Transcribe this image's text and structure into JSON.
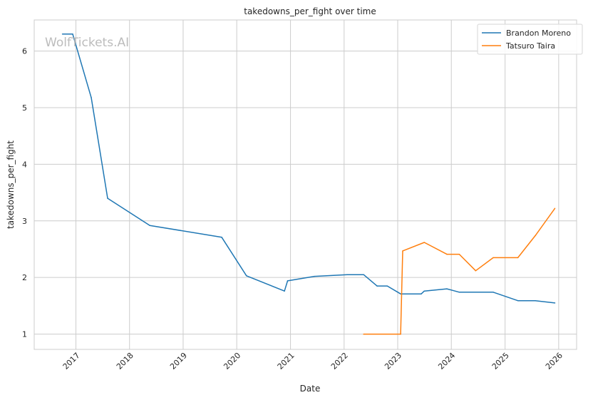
{
  "chart_data": {
    "type": "line",
    "title": "takedowns_per_fight over time",
    "xlabel": "Date",
    "ylabel": "takedowns_per_fight",
    "x_ticks": [
      "2017",
      "2018",
      "2019",
      "2020",
      "2021",
      "2022",
      "2023",
      "2024",
      "2025",
      "2026"
    ],
    "y_ticks": [
      1,
      2,
      3,
      4,
      5,
      6
    ],
    "xlim": [
      "2016-03-23",
      "2026-05-03"
    ],
    "ylim": [
      0.73,
      6.55
    ],
    "grid": true,
    "legend_position": "top-right",
    "watermark": "WolfTickets.AI",
    "series": [
      {
        "name": "Brandon Moreno",
        "color": "#1f77b4",
        "points": [
          {
            "x": "2016-10-01",
            "y": 6.3
          },
          {
            "x": "2016-12-10",
            "y": 6.3
          },
          {
            "x": "2017-04-15",
            "y": 5.18
          },
          {
            "x": "2017-08-05",
            "y": 3.4
          },
          {
            "x": "2018-05-19",
            "y": 2.92
          },
          {
            "x": "2019-09-21",
            "y": 2.71
          },
          {
            "x": "2020-03-07",
            "y": 2.03
          },
          {
            "x": "2020-11-21",
            "y": 1.76
          },
          {
            "x": "2020-12-12",
            "y": 1.94
          },
          {
            "x": "2021-06-12",
            "y": 2.02
          },
          {
            "x": "2022-01-22",
            "y": 2.05
          },
          {
            "x": "2022-05-14",
            "y": 2.05
          },
          {
            "x": "2022-08-13",
            "y": 1.85
          },
          {
            "x": "2022-10-22",
            "y": 1.85
          },
          {
            "x": "2023-01-21",
            "y": 1.71
          },
          {
            "x": "2023-06-10",
            "y": 1.71
          },
          {
            "x": "2023-07-01",
            "y": 1.76
          },
          {
            "x": "2023-12-02",
            "y": 1.8
          },
          {
            "x": "2024-02-24",
            "y": 1.74
          },
          {
            "x": "2024-10-12",
            "y": 1.74
          },
          {
            "x": "2025-03-29",
            "y": 1.59
          },
          {
            "x": "2025-07-26",
            "y": 1.59
          },
          {
            "x": "2025-12-06",
            "y": 1.55
          }
        ]
      },
      {
        "name": "Tatsuro Taira",
        "color": "#ff7f0e",
        "points": [
          {
            "x": "2022-05-14",
            "y": 1.0
          },
          {
            "x": "2023-01-21",
            "y": 1.0
          },
          {
            "x": "2023-02-04",
            "y": 2.47
          },
          {
            "x": "2023-07-01",
            "y": 2.62
          },
          {
            "x": "2023-12-02",
            "y": 2.41
          },
          {
            "x": "2024-02-24",
            "y": 2.41
          },
          {
            "x": "2024-06-15",
            "y": 2.12
          },
          {
            "x": "2024-10-12",
            "y": 2.35
          },
          {
            "x": "2025-03-29",
            "y": 2.35
          },
          {
            "x": "2025-07-26",
            "y": 2.74
          },
          {
            "x": "2025-12-06",
            "y": 3.22
          }
        ]
      }
    ]
  }
}
